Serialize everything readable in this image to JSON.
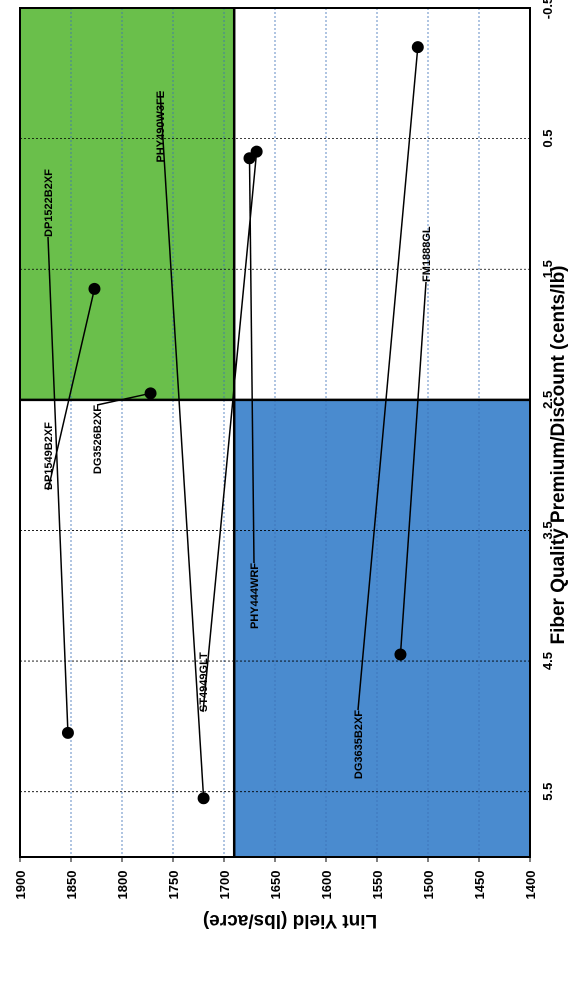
{
  "chart_data": {
    "type": "scatter",
    "title": "",
    "xlabel": "Fiber Quality Premium/Discount (cents/lb)",
    "ylabel": "Lint Yield (lbs/acre)",
    "xlim": [
      -0.5,
      6
    ],
    "ylim": [
      1400,
      1900
    ],
    "xticks": [
      -0.5,
      0.5,
      1.5,
      2.5,
      3.5,
      4.5,
      5.5
    ],
    "xtick_labels": [
      "-0.5",
      "0.5",
      "1.5",
      "2.5",
      "3.5",
      "4.5",
      "5.5"
    ],
    "yticks": [
      1400,
      1450,
      1500,
      1550,
      1600,
      1650,
      1700,
      1750,
      1800,
      1850,
      1900
    ],
    "ytick_labels": [
      "1400",
      "1450",
      "1500",
      "1550",
      "1600",
      "1650",
      "1700",
      "1750",
      "1800",
      "1850",
      "1900"
    ],
    "rotation": "rotated 90 degrees clockwise",
    "quadrants": {
      "x_divider": 2.5,
      "y_divider": 1690,
      "high_yield_high_premium_color": "#6abf4b",
      "low_yield_low_premium_color": "#4a8bcf"
    },
    "points": [
      {
        "label": "DG3635B2XF",
        "x": -0.2,
        "y": 1510
      },
      {
        "label": "ST4949GLT",
        "x": 0.6,
        "y": 1668
      },
      {
        "label": "PHY444WRF",
        "x": 0.65,
        "y": 1675
      },
      {
        "label": "DP1549B2XF",
        "x": 1.65,
        "y": 1827
      },
      {
        "label": "DG3526B2XF",
        "x": 2.45,
        "y": 1772
      },
      {
        "label": "FM1888GL",
        "x": 4.45,
        "y": 1527
      },
      {
        "label": "DP1522B2XF",
        "x": 5.05,
        "y": 1853
      },
      {
        "label": "PHY490W3FE",
        "x": 5.55,
        "y": 1720
      }
    ]
  }
}
